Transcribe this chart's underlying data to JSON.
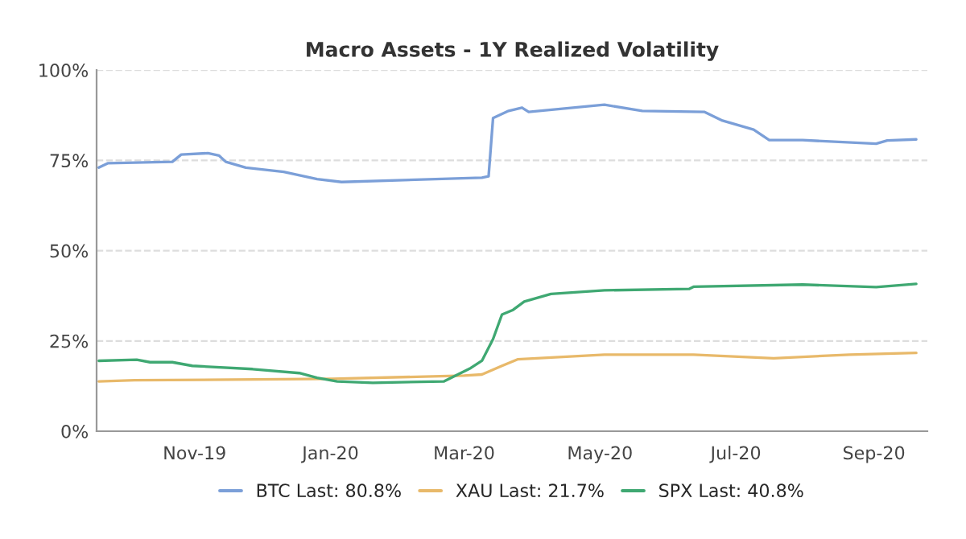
{
  "chart_data": {
    "type": "line",
    "title": "Macro Assets - 1Y Realized Volatility",
    "series": [
      {
        "name": "BTC Last: 80.8%",
        "color": "#7b9fd8",
        "x": [
          "2019-09-19",
          "2019-09-23",
          "2019-10-22",
          "2019-10-26",
          "2019-11-07",
          "2019-11-12",
          "2019-11-15",
          "2019-11-24",
          "2019-12-11",
          "2019-12-26",
          "2020-01-06",
          "2020-03-09",
          "2020-03-12",
          "2020-03-14",
          "2020-03-21",
          "2020-03-27",
          "2020-03-30",
          "2020-05-03",
          "2020-05-20",
          "2020-06-17",
          "2020-06-25",
          "2020-07-09",
          "2020-07-16",
          "2020-07-31",
          "2020-09-02",
          "2020-09-07",
          "2020-09-20"
        ],
        "values": [
          73,
          74.2,
          74.6,
          76.6,
          77,
          76.3,
          74.6,
          73,
          71.8,
          69.8,
          69,
          70.2,
          70.6,
          86.7,
          88.7,
          89.6,
          88.4,
          90.4,
          88.7,
          88.4,
          86,
          83.5,
          80.6,
          80.6,
          79.6,
          80.5,
          80.8
        ]
      },
      {
        "name": "XAU Last: 21.7%",
        "color": "#e8b96a",
        "x": [
          "2019-09-19",
          "2019-10-05",
          "2020-01-02",
          "2020-03-01",
          "2020-03-09",
          "2020-03-18",
          "2020-03-25",
          "2020-05-03",
          "2020-06-12",
          "2020-07-18",
          "2020-08-21",
          "2020-09-20"
        ],
        "values": [
          13.8,
          14.1,
          14.5,
          15.4,
          15.7,
          18.1,
          19.9,
          21.2,
          21.2,
          20.2,
          21.2,
          21.7
        ]
      },
      {
        "name": "SPX Last: 40.8%",
        "color": "#3fa872",
        "x": [
          "2019-09-19",
          "2019-10-06",
          "2019-10-12",
          "2019-10-22",
          "2019-10-31",
          "2019-11-27",
          "2019-12-18",
          "2019-12-26",
          "2020-01-04",
          "2020-01-20",
          "2020-02-21",
          "2020-03-04",
          "2020-03-09",
          "2020-03-14",
          "2020-03-18",
          "2020-03-23",
          "2020-03-28",
          "2020-04-09",
          "2020-05-03",
          "2020-06-10",
          "2020-06-12",
          "2020-07-31",
          "2020-09-02",
          "2020-09-20"
        ],
        "values": [
          19.5,
          19.8,
          19.1,
          19.1,
          18.1,
          17.2,
          16.1,
          14.8,
          13.8,
          13.4,
          13.8,
          17.5,
          19.5,
          25.5,
          32.3,
          33.6,
          35.9,
          38,
          39,
          39.4,
          40,
          40.6,
          39.9,
          40.8
        ]
      }
    ],
    "xlim": [
      "2019-09-18",
      "2020-09-25"
    ],
    "xticks": [
      {
        "value": "2019-11-01",
        "label": "Nov-19"
      },
      {
        "value": "2020-01-01",
        "label": "Jan-20"
      },
      {
        "value": "2020-03-01",
        "label": "Mar-20"
      },
      {
        "value": "2020-05-01",
        "label": "May-20"
      },
      {
        "value": "2020-07-01",
        "label": "Jul-20"
      },
      {
        "value": "2020-09-01",
        "label": "Sep-20"
      }
    ],
    "ylim": [
      0,
      100
    ],
    "yticks": [
      {
        "value": 0,
        "label": "0%"
      },
      {
        "value": 25,
        "label": "25%"
      },
      {
        "value": 50,
        "label": "50%"
      },
      {
        "value": 75,
        "label": "75%"
      },
      {
        "value": 100,
        "label": "100%"
      }
    ],
    "grid": "y",
    "legend": "bottom",
    "marker": "none",
    "line_style": "solid"
  }
}
